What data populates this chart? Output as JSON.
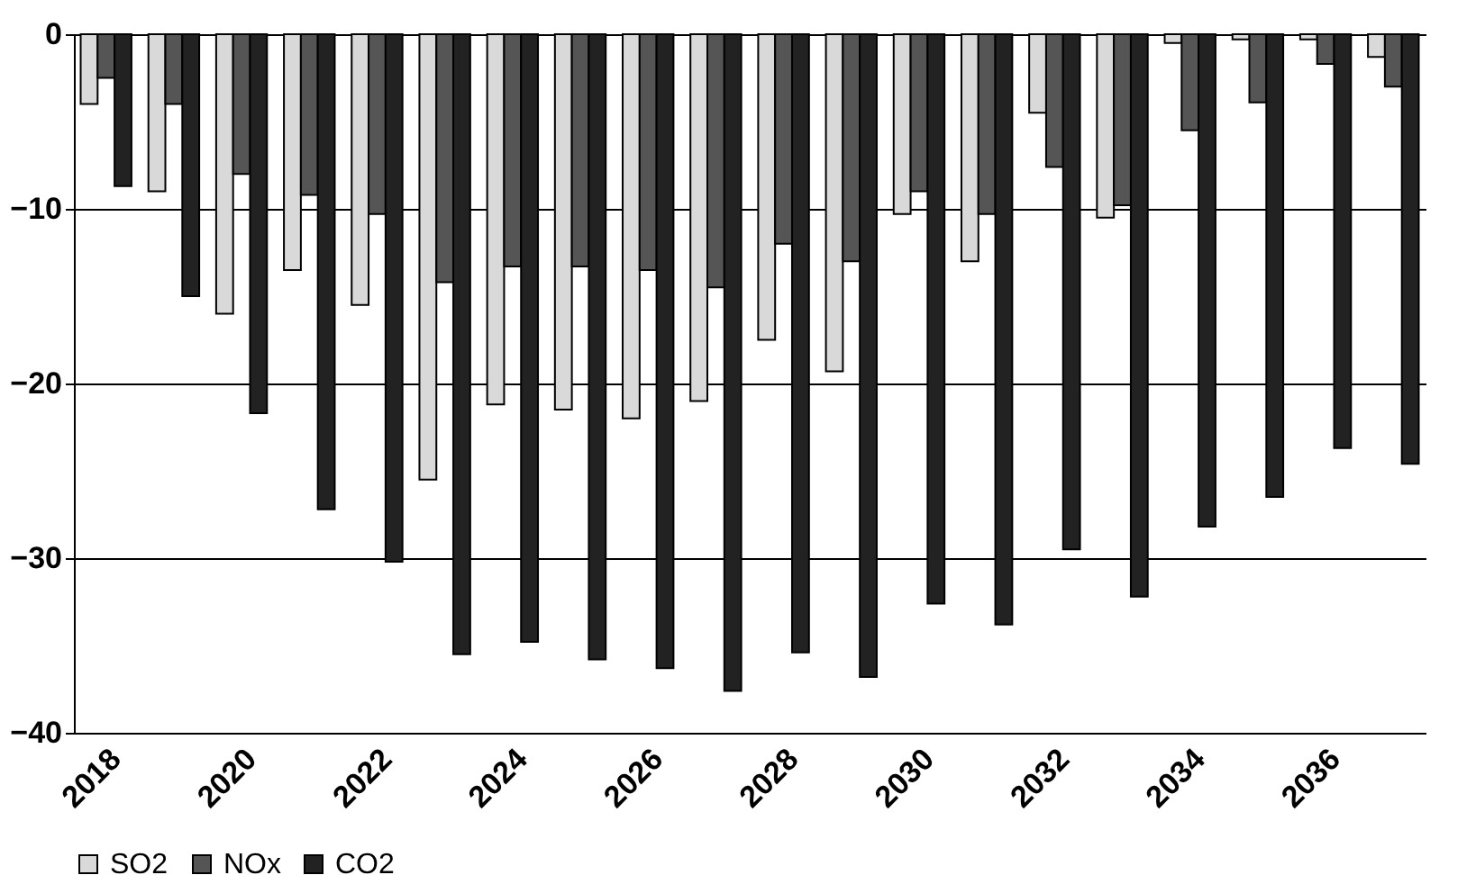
{
  "chart_data": {
    "type": "bar",
    "categories": [
      "2018",
      null,
      "2020",
      null,
      "2022",
      null,
      "2024",
      null,
      "2026",
      null,
      "2028",
      null,
      "2030",
      null,
      "2032",
      null,
      "2034",
      null,
      "2036",
      null
    ],
    "series": [
      {
        "name": "SO2",
        "color": "#d9d9d9",
        "values": [
          -4,
          -9,
          -16,
          -13.5,
          -15.5,
          -25.5,
          -21.2,
          -21.5,
          -22,
          -21,
          -17.5,
          -19.3,
          -10.3,
          -13,
          -4.5,
          -10.5,
          -0.5,
          -0.3,
          -0.3,
          -1.3
        ]
      },
      {
        "name": "NOx",
        "color": "#555555",
        "values": [
          -2.5,
          -4,
          -8,
          -9.2,
          -10.3,
          -14.2,
          -13.3,
          -13.3,
          -13.5,
          -14.5,
          -12,
          -13,
          -9,
          -10.3,
          -7.6,
          -9.8,
          -5.5,
          -3.9,
          -1.7,
          -3
        ]
      },
      {
        "name": "CO2",
        "color": "#222222",
        "values": [
          -8.7,
          -15,
          -21.7,
          -27.2,
          -30.2,
          -35.5,
          -34.8,
          -35.8,
          -36.3,
          -37.6,
          -35.4,
          -36.8,
          -32.6,
          -33.8,
          -29.5,
          -32.2,
          -28.2,
          -26.5,
          -23.7,
          -24.6
        ]
      }
    ],
    "ylim": [
      -40,
      0
    ],
    "yticks": [
      0,
      -10,
      -20,
      -30,
      -40
    ],
    "grid": "y",
    "legend": "bottom"
  }
}
